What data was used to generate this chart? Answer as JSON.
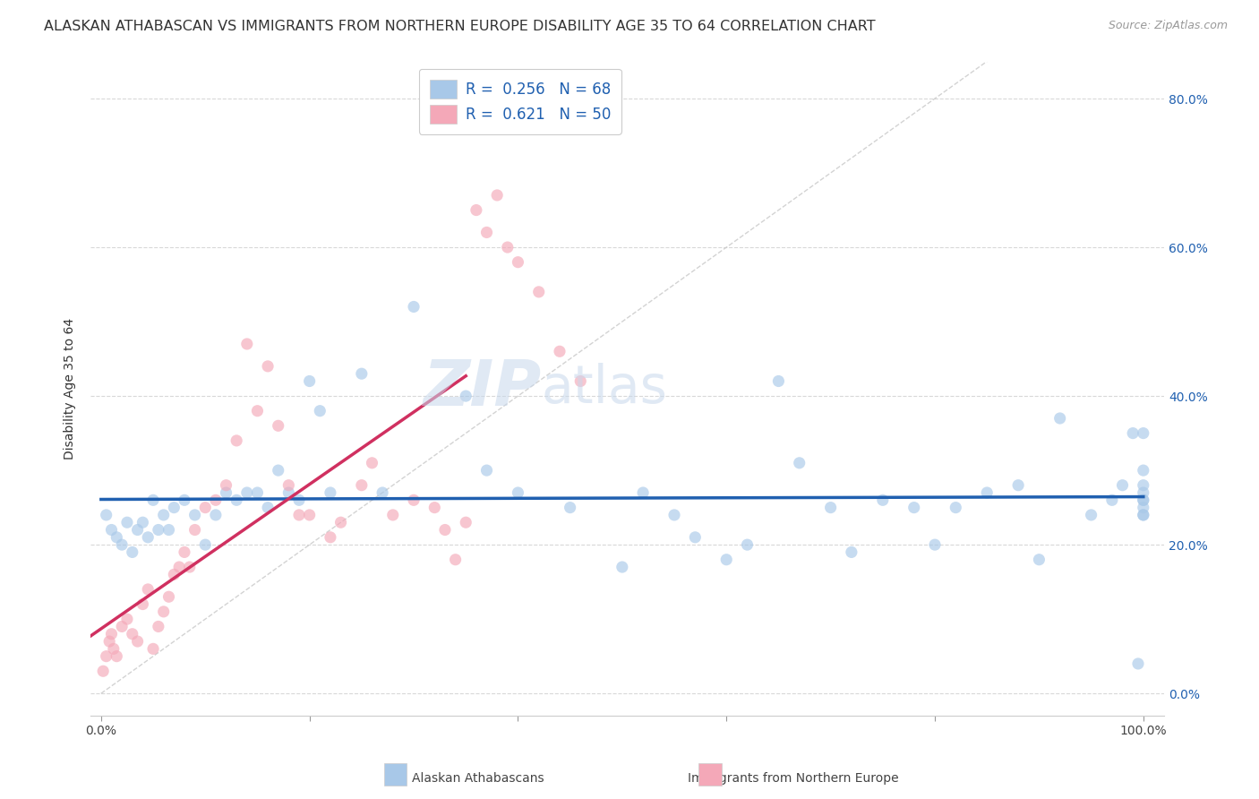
{
  "title": "ALASKAN ATHABASCAN VS IMMIGRANTS FROM NORTHERN EUROPE DISABILITY AGE 35 TO 64 CORRELATION CHART",
  "source": "Source: ZipAtlas.com",
  "ylabel": "Disability Age 35 to 64",
  "legend_label1": "Alaskan Athabascans",
  "legend_label2": "Immigrants from Northern Europe",
  "R1": 0.256,
  "N1": 68,
  "R2": 0.621,
  "N2": 50,
  "color_blue": "#a8c8e8",
  "color_pink": "#f4a8b8",
  "color_blue_line": "#2060b0",
  "color_pink_line": "#d03060",
  "color_diag": "#c8c8c8",
  "watermark_zip": "ZIP",
  "watermark_atlas": "atlas",
  "blue_x": [
    0.5,
    1.0,
    1.5,
    2.0,
    2.5,
    3.0,
    3.5,
    4.0,
    4.5,
    5.0,
    5.5,
    6.0,
    6.5,
    7.0,
    8.0,
    9.0,
    10.0,
    11.0,
    12.0,
    13.0,
    14.0,
    15.0,
    16.0,
    17.0,
    18.0,
    19.0,
    20.0,
    21.0,
    22.0,
    25.0,
    27.0,
    30.0,
    35.0,
    37.0,
    40.0,
    45.0,
    50.0,
    52.0,
    55.0,
    57.0,
    60.0,
    62.0,
    65.0,
    67.0,
    70.0,
    72.0,
    75.0,
    78.0,
    80.0,
    82.0,
    85.0,
    88.0,
    90.0,
    92.0,
    95.0,
    97.0,
    98.0,
    99.0,
    99.5,
    100.0,
    100.0,
    100.0,
    100.0,
    100.0,
    100.0,
    100.0,
    100.0,
    100.0
  ],
  "blue_y": [
    24.0,
    22.0,
    21.0,
    20.0,
    23.0,
    19.0,
    22.0,
    23.0,
    21.0,
    26.0,
    22.0,
    24.0,
    22.0,
    25.0,
    26.0,
    24.0,
    20.0,
    24.0,
    27.0,
    26.0,
    27.0,
    27.0,
    25.0,
    30.0,
    27.0,
    26.0,
    42.0,
    38.0,
    27.0,
    43.0,
    27.0,
    52.0,
    40.0,
    30.0,
    27.0,
    25.0,
    17.0,
    27.0,
    24.0,
    21.0,
    18.0,
    20.0,
    42.0,
    31.0,
    25.0,
    19.0,
    26.0,
    25.0,
    20.0,
    25.0,
    27.0,
    28.0,
    18.0,
    37.0,
    24.0,
    26.0,
    28.0,
    35.0,
    4.0,
    27.0,
    30.0,
    26.0,
    24.0,
    24.0,
    28.0,
    26.0,
    25.0,
    35.0
  ],
  "pink_x": [
    0.2,
    0.5,
    0.8,
    1.0,
    1.2,
    1.5,
    2.0,
    2.5,
    3.0,
    3.5,
    4.0,
    4.5,
    5.0,
    5.5,
    6.0,
    6.5,
    7.0,
    7.5,
    8.0,
    8.5,
    9.0,
    10.0,
    11.0,
    12.0,
    13.0,
    14.0,
    15.0,
    16.0,
    17.0,
    18.0,
    19.0,
    20.0,
    22.0,
    23.0,
    25.0,
    26.0,
    28.0,
    30.0,
    32.0,
    33.0,
    34.0,
    35.0,
    36.0,
    37.0,
    38.0,
    39.0,
    40.0,
    42.0,
    44.0,
    46.0
  ],
  "pink_y": [
    3.0,
    5.0,
    7.0,
    8.0,
    6.0,
    5.0,
    9.0,
    10.0,
    8.0,
    7.0,
    12.0,
    14.0,
    6.0,
    9.0,
    11.0,
    13.0,
    16.0,
    17.0,
    19.0,
    17.0,
    22.0,
    25.0,
    26.0,
    28.0,
    34.0,
    47.0,
    38.0,
    44.0,
    36.0,
    28.0,
    24.0,
    24.0,
    21.0,
    23.0,
    28.0,
    31.0,
    24.0,
    26.0,
    25.0,
    22.0,
    18.0,
    23.0,
    65.0,
    62.0,
    67.0,
    60.0,
    58.0,
    54.0,
    46.0,
    42.0
  ],
  "xlim_pct": [
    0.0,
    100.0
  ],
  "ylim_pct": [
    0.0,
    85.0
  ],
  "ytick_vals": [
    0,
    20,
    40,
    60,
    80
  ],
  "xtick_vals": [
    0,
    20,
    40,
    60,
    80,
    100
  ],
  "grid_color": "#d8d8d8",
  "bg_color": "#ffffff",
  "title_fontsize": 11.5,
  "source_fontsize": 9,
  "ylabel_fontsize": 10,
  "tick_fontsize": 10,
  "legend_fontsize": 12,
  "marker_size": 90,
  "marker_alpha": 0.65
}
